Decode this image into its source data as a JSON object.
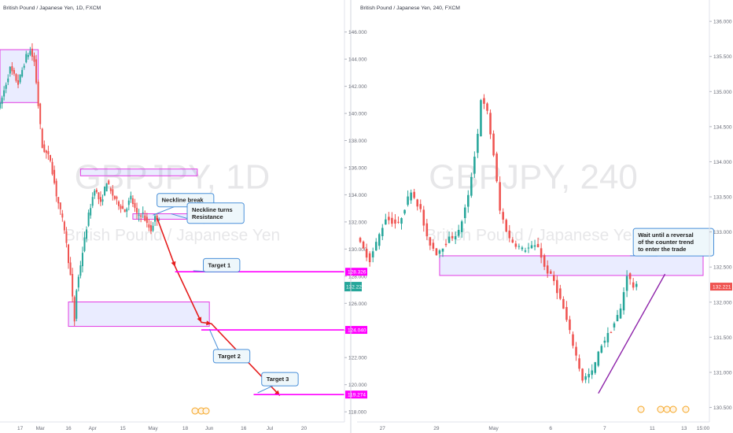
{
  "chart_data": [
    {
      "type": "candlestick",
      "title": "British Pound / Japanese Yen, 1D, FXCM",
      "watermark_symbol": "GBPJPY, 1D",
      "watermark_name": "British Pound / Japanese Yen",
      "ylim": [
        117.6,
        147.2
      ],
      "y_ticks": [
        118,
        120,
        122,
        124,
        126,
        128,
        130,
        132,
        134,
        136,
        138,
        140,
        142,
        144,
        146
      ],
      "y_tick_labels": [
        "118.000",
        "120.000",
        "122.000",
        "124.000",
        "126.000",
        "128.000",
        "130.000",
        "132.000",
        "134.000",
        "136.000",
        "138.000",
        "140.000",
        "142.000",
        "144.000",
        "146.000"
      ],
      "x_range": [
        -6,
        162
      ],
      "x_ticks": [
        {
          "x": 4,
          "label": "17"
        },
        {
          "x": 14,
          "label": "Mar"
        },
        {
          "x": 28,
          "label": "16"
        },
        {
          "x": 40,
          "label": "Apr"
        },
        {
          "x": 55,
          "label": "15"
        },
        {
          "x": 70,
          "label": "May"
        },
        {
          "x": 86,
          "label": "18"
        },
        {
          "x": 98,
          "label": "Jun"
        },
        {
          "x": 115,
          "label": "16"
        },
        {
          "x": 128,
          "label": "Jul"
        },
        {
          "x": 145,
          "label": "20"
        }
      ],
      "candle_range": [
        -6,
        73
      ],
      "segments": [
        {
          "x": -5,
          "p": 140.6
        },
        {
          "x": 0,
          "p": 143.3
        },
        {
          "x": 4,
          "p": 142.2
        },
        {
          "x": 8,
          "p": 144.2
        },
        {
          "x": 10,
          "p": 144.6
        },
        {
          "x": 12,
          "p": 143.8
        },
        {
          "x": 13,
          "p": 142.3
        },
        {
          "x": 14,
          "p": 140.6
        },
        {
          "x": 16,
          "p": 137.5
        },
        {
          "x": 20,
          "p": 136.6
        },
        {
          "x": 23,
          "p": 134.0
        },
        {
          "x": 27,
          "p": 131.5
        },
        {
          "x": 30,
          "p": 128.0
        },
        {
          "x": 32,
          "p": 124.7
        },
        {
          "x": 33,
          "p": 127.0
        },
        {
          "x": 36,
          "p": 129.8
        },
        {
          "x": 39,
          "p": 132.5
        },
        {
          "x": 42,
          "p": 134.5
        },
        {
          "x": 45,
          "p": 133.3
        },
        {
          "x": 48,
          "p": 135.0
        },
        {
          "x": 50,
          "p": 134.2
        },
        {
          "x": 53,
          "p": 133.5
        },
        {
          "x": 57,
          "p": 132.8
        },
        {
          "x": 60,
          "p": 133.8
        },
        {
          "x": 63,
          "p": 132.5
        },
        {
          "x": 66,
          "p": 132.6
        },
        {
          "x": 68,
          "p": 131.8
        },
        {
          "x": 70,
          "p": 131.4
        },
        {
          "x": 72,
          "p": 132.3
        }
      ],
      "boxes": [
        {
          "x1": -6,
          "x2": 13,
          "y1": 140.8,
          "y2": 144.7
        },
        {
          "x1": 34,
          "x2": 92,
          "y1": 135.4,
          "y2": 135.9
        },
        {
          "x1": 60,
          "x2": 92,
          "y1": 132.2,
          "y2": 132.6
        },
        {
          "x1": 28,
          "x2": 98,
          "y1": 124.3,
          "y2": 126.1
        }
      ],
      "path": [
        {
          "x": 72,
          "p": 132.3
        },
        {
          "x": 81,
          "p": 128.7
        },
        {
          "x": 94,
          "p": 124.6
        },
        {
          "x": 99,
          "p": 124.5
        },
        {
          "x": 133,
          "p": 119.2
        }
      ],
      "targets": [
        {
          "name": "Target 1",
          "price": 128.326,
          "price_label": "128.326",
          "x1": 81,
          "x2": 162
        },
        {
          "name": "Target 2",
          "price": 124.04,
          "price_label": "124.040",
          "x1": 94,
          "x2": 162
        },
        {
          "name": "Target 3",
          "price": 119.274,
          "price_label": "119.274",
          "x1": 120,
          "x2": 162
        }
      ],
      "callouts": [
        {
          "text": [
            "Neckline break"
          ],
          "x": 72,
          "p": 134.1,
          "ax": 70,
          "ap": 132.5
        },
        {
          "text": [
            "Neckline turns",
            "Resistance"
          ],
          "x": 87,
          "p": 133.4,
          "ax": 79,
          "ap": 132.6
        },
        {
          "text": [
            "Target 1"
          ],
          "x": 95,
          "p": 129.3,
          "ax": 90,
          "ap": 128.4
        },
        {
          "text": [
            "Target 2"
          ],
          "x": 100,
          "p": 122.6,
          "ax": 98,
          "ap": 124.1
        },
        {
          "text": [
            "Target 3"
          ],
          "x": 124,
          "p": 120.9,
          "ax": 122,
          "ap": 119.4
        }
      ]
    },
    {
      "type": "candlestick",
      "title": "British Pound / Japanese Yen, 240, FXCM",
      "watermark_symbol": "GBPJPY, 240",
      "watermark_name": "British Pound / Japanese Yen",
      "ylim": [
        130.36,
        136.08
      ],
      "y_ticks": [
        130.5,
        131.0,
        131.5,
        132.0,
        132.5,
        133.0,
        133.5,
        134.0,
        134.5,
        135.0,
        135.5,
        136.0
      ],
      "y_tick_labels": [
        "130.500",
        "131.000",
        "131.500",
        "132.000",
        "132.500",
        "133.000",
        "133.500",
        "134.000",
        "134.500",
        "135.000",
        "135.500",
        "136.000"
      ],
      "x_range": [
        0,
        109
      ],
      "x_ticks": [
        {
          "x": 8,
          "label": "27"
        },
        {
          "x": 25,
          "label": "29"
        },
        {
          "x": 43,
          "label": "May"
        },
        {
          "x": 61,
          "label": "6"
        },
        {
          "x": 78,
          "label": "7"
        },
        {
          "x": 93,
          "label": "11"
        },
        {
          "x": 103,
          "label": "13"
        },
        {
          "x": 109,
          "label": "15:00"
        }
      ],
      "candle_range": [
        1,
        88
      ],
      "segments": [
        {
          "x": 1,
          "p": 132.9
        },
        {
          "x": 5,
          "p": 132.6
        },
        {
          "x": 10,
          "p": 133.2
        },
        {
          "x": 14,
          "p": 133.1
        },
        {
          "x": 18,
          "p": 133.6
        },
        {
          "x": 21,
          "p": 133.3
        },
        {
          "x": 23,
          "p": 132.9
        },
        {
          "x": 26,
          "p": 132.7
        },
        {
          "x": 30,
          "p": 132.9
        },
        {
          "x": 33,
          "p": 133.0
        },
        {
          "x": 36,
          "p": 133.5
        },
        {
          "x": 39,
          "p": 134.4
        },
        {
          "x": 40,
          "p": 134.9
        },
        {
          "x": 42,
          "p": 134.7
        },
        {
          "x": 44,
          "p": 134.1
        },
        {
          "x": 46,
          "p": 133.3
        },
        {
          "x": 49,
          "p": 132.9
        },
        {
          "x": 53,
          "p": 132.75
        },
        {
          "x": 58,
          "p": 132.8
        },
        {
          "x": 60,
          "p": 132.5
        },
        {
          "x": 63,
          "p": 132.3
        },
        {
          "x": 66,
          "p": 131.9
        },
        {
          "x": 69,
          "p": 131.4
        },
        {
          "x": 72,
          "p": 130.9
        },
        {
          "x": 75,
          "p": 131.0
        },
        {
          "x": 78,
          "p": 131.4
        },
        {
          "x": 81,
          "p": 131.6
        },
        {
          "x": 84,
          "p": 131.9
        },
        {
          "x": 86,
          "p": 132.4
        },
        {
          "x": 88,
          "p": 132.22
        }
      ],
      "boxes": [
        {
          "x1": 26,
          "x2": 109,
          "y1": 132.38,
          "y2": 132.66
        }
      ],
      "trendline": [
        {
          "x": 76,
          "p": 130.7
        },
        {
          "x": 97,
          "p": 132.4
        }
      ],
      "price_tag": {
        "price": 132.221,
        "label": "132.221"
      },
      "last_price_tag": {
        "label": "132.221"
      },
      "callouts": [
        {
          "text": [
            "Wait until a reversal",
            "of the counter trend",
            "to enter the trade"
          ],
          "x": 87,
          "p": 133.05,
          "ax": 86,
          "ap": 132.66
        }
      ]
    }
  ]
}
